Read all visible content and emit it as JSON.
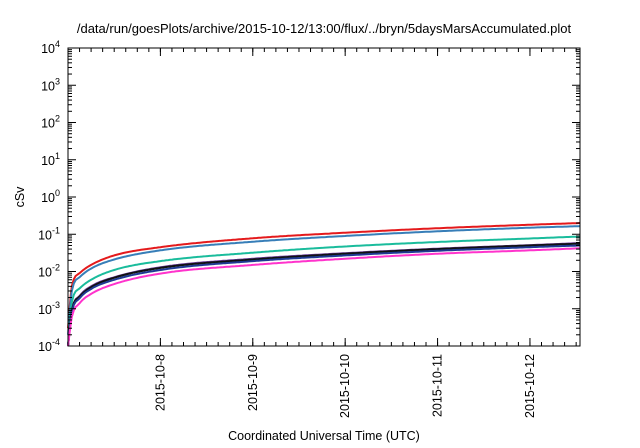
{
  "chart_data": {
    "type": "line",
    "title": "/data/run/goesPlots/archive/2015-10-12/13:00/flux/../bryn/5daysMarsAccumulated.plot",
    "xlabel": "Coordinated Universal Time (UTC)",
    "ylabel": "cSv",
    "yscale": "log",
    "ylim": [
      0.0001,
      10000
    ],
    "xlim": [
      "2015-10-7 00:00",
      "2015-10-12 13:00"
    ],
    "yticks": [
      {
        "base": "10",
        "exp": "-4"
      },
      {
        "base": "10",
        "exp": "-3"
      },
      {
        "base": "10",
        "exp": "-2"
      },
      {
        "base": "10",
        "exp": "-1"
      },
      {
        "base": "10",
        "exp": "0"
      },
      {
        "base": "10",
        "exp": "1"
      },
      {
        "base": "10",
        "exp": "2"
      },
      {
        "base": "10",
        "exp": "3"
      },
      {
        "base": "10",
        "exp": "4"
      }
    ],
    "xticks": [
      "2015-10-8",
      "2015-10-9",
      "2015-10-10",
      "2015-10-11",
      "2015-10-12"
    ],
    "grid": false,
    "legend": "none",
    "x": [
      "2015-10-7 00:00",
      "2015-10-7 01:00",
      "2015-10-7 03:00",
      "2015-10-7 06:00",
      "2015-10-7 12:00",
      "2015-10-8 00:00",
      "2015-10-9 00:00",
      "2015-10-10 00:00",
      "2015-10-11 00:00",
      "2015-10-12 00:00",
      "2015-10-12 13:00"
    ],
    "series": [
      {
        "color": "#e41a1c",
        "values": [
          0.0003,
          0.004,
          0.009,
          0.015,
          0.027,
          0.045,
          0.078,
          0.11,
          0.145,
          0.18,
          0.2
        ]
      },
      {
        "color": "#377eb8",
        "values": [
          0.0002,
          0.003,
          0.007,
          0.012,
          0.021,
          0.037,
          0.063,
          0.09,
          0.12,
          0.15,
          0.165
        ]
      },
      {
        "color": "#1abc9c",
        "values": [
          0.0001,
          0.0015,
          0.0035,
          0.006,
          0.011,
          0.019,
          0.032,
          0.047,
          0.062,
          0.077,
          0.087
        ]
      },
      {
        "color": "#6a3d9a",
        "values": [
          0.0001,
          0.0009,
          0.0022,
          0.004,
          0.007,
          0.013,
          0.022,
          0.031,
          0.041,
          0.051,
          0.058
        ]
      },
      {
        "color": "#111111",
        "values": [
          0.0001,
          0.0009,
          0.0021,
          0.0038,
          0.0068,
          0.0125,
          0.021,
          0.03,
          0.04,
          0.05,
          0.056
        ]
      },
      {
        "color": "#1f3a93",
        "values": [
          0.0001,
          0.0008,
          0.0019,
          0.0034,
          0.006,
          0.011,
          0.019,
          0.027,
          0.036,
          0.045,
          0.05
        ]
      },
      {
        "color": "#ff33cc",
        "values": [
          0.0001,
          0.0006,
          0.0014,
          0.0025,
          0.0046,
          0.0088,
          0.015,
          0.022,
          0.03,
          0.037,
          0.042
        ]
      }
    ]
  }
}
